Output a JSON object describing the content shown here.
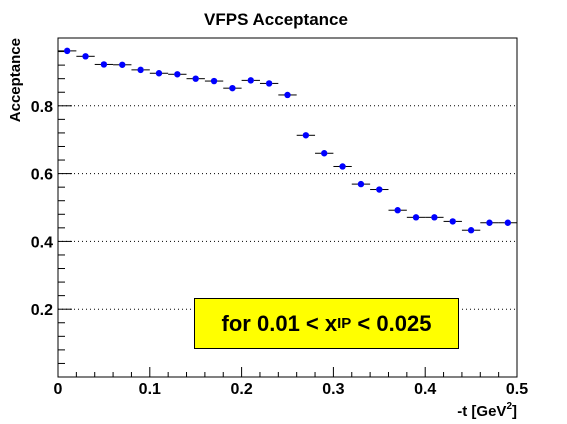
{
  "chart_data": {
    "type": "scatter",
    "title": "VFPS Acceptance",
    "xlabel": "-t [GeV",
    "xlabel_superscript": "2",
    "xlabel_close": "]",
    "ylabel": "Acceptance",
    "xlim": [
      0,
      0.5
    ],
    "ylim": [
      0,
      1.0
    ],
    "x_ticks": [
      0,
      0.1,
      0.2,
      0.3,
      0.4,
      0.5
    ],
    "x_tick_labels": [
      "0",
      "0.1",
      "0.2",
      "0.3",
      "0.4",
      "0.5"
    ],
    "y_ticks": [
      0.2,
      0.4,
      0.6,
      0.8
    ],
    "y_tick_labels": [
      "0.2",
      "0.4",
      "0.6",
      "0.8"
    ],
    "grid": "horizontal dotted at major y ticks",
    "marker_color": "#0000ff",
    "bin_half_width": 0.01,
    "series": [
      {
        "x": [
          0.01,
          0.03,
          0.05,
          0.07,
          0.09,
          0.11,
          0.13,
          0.15,
          0.17,
          0.19,
          0.21,
          0.23,
          0.25,
          0.27,
          0.29,
          0.31,
          0.33,
          0.35,
          0.37,
          0.39,
          0.41,
          0.43,
          0.45,
          0.47,
          0.49
        ],
        "y": [
          0.962,
          0.946,
          0.922,
          0.921,
          0.906,
          0.896,
          0.893,
          0.88,
          0.873,
          0.852,
          0.875,
          0.866,
          0.832,
          0.713,
          0.66,
          0.621,
          0.569,
          0.553,
          0.492,
          0.471,
          0.471,
          0.459,
          0.433,
          0.455,
          0.455
        ]
      }
    ],
    "annotation": {
      "text_before": "for 0.01 < x",
      "subscript": "IP",
      "text_after": " < 0.025",
      "background": "#ffff00"
    }
  }
}
